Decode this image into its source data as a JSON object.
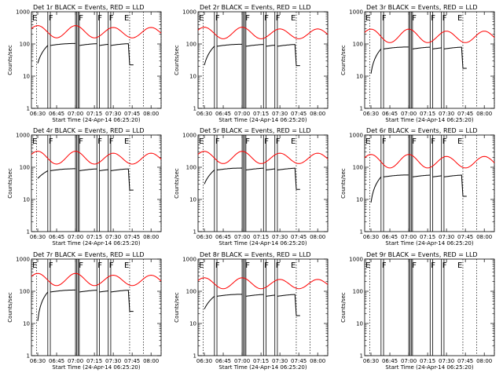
{
  "chart_data": {
    "type": "line",
    "xlabel": "Start Time (24-Apr-14 06:25:20)",
    "ylabel": "Counts/sec",
    "y_scale": "log",
    "ylim": [
      1,
      1000
    ],
    "y_ticks": [
      "1",
      "10",
      "100",
      "1000"
    ],
    "x_ticks": [
      "06:30",
      "06:45",
      "07:00",
      "07:15",
      "07:30",
      "07:45",
      "08:00"
    ],
    "x_tick_minutes": [
      0,
      15,
      30,
      45,
      60,
      75,
      90
    ],
    "x_range_minutes": [
      -5,
      98
    ],
    "series_colors": {
      "events": "#000000",
      "lld": "#ff0000"
    },
    "flags": [
      {
        "label": "E",
        "t": -5
      },
      {
        "label": "F",
        "t": 8
      },
      {
        "label": "F",
        "t": 32
      },
      {
        "label": "F",
        "t": 47
      },
      {
        "label": "F",
        "t": 56
      },
      {
        "label": "E",
        "t": 68
      }
    ],
    "dashed_lines": [
      -1,
      73,
      84,
      98
    ],
    "solid_lines": [
      8,
      10,
      30,
      31,
      32,
      33,
      47,
      49,
      56,
      58
    ],
    "panels": [
      {
        "title": "Det 1r  BLACK = Events, RED = LLD",
        "black_base": 90,
        "red_base": 155,
        "red_amp": 0.38,
        "black_start": 25
      },
      {
        "title": "Det 2r  BLACK = Events, RED = LLD",
        "black_base": 85,
        "red_base": 145,
        "red_amp": 0.36,
        "black_start": 22
      },
      {
        "title": "Det 3r  BLACK = Events, RED = LLD",
        "black_base": 70,
        "red_base": 110,
        "red_amp": 0.42,
        "black_start": 12
      },
      {
        "title": "Det 4r  BLACK = Events, RED = LLD",
        "black_base": 78,
        "red_base": 125,
        "red_amp": 0.4,
        "black_start": 45
      },
      {
        "title": "Det 5r  BLACK = Events, RED = LLD",
        "black_base": 82,
        "red_base": 130,
        "red_amp": 0.38,
        "black_start": 30
      },
      {
        "title": "Det 6r  BLACK = Events, RED = LLD",
        "black_base": 50,
        "red_base": 95,
        "red_amp": 0.42,
        "black_start": 8
      },
      {
        "title": "Det 7r  BLACK = Events, RED = LLD",
        "black_base": 95,
        "red_base": 150,
        "red_amp": 0.38,
        "black_start": 12
      },
      {
        "title": "Det 8r  BLACK = Events, RED = LLD",
        "black_base": 70,
        "red_base": 120,
        "red_amp": 0.34,
        "black_start": 28
      },
      {
        "title": "Det 9r  BLACK = Events, RED = LLD",
        "black_base": null,
        "red_base": null,
        "red_amp": 0,
        "black_start": null
      }
    ]
  }
}
